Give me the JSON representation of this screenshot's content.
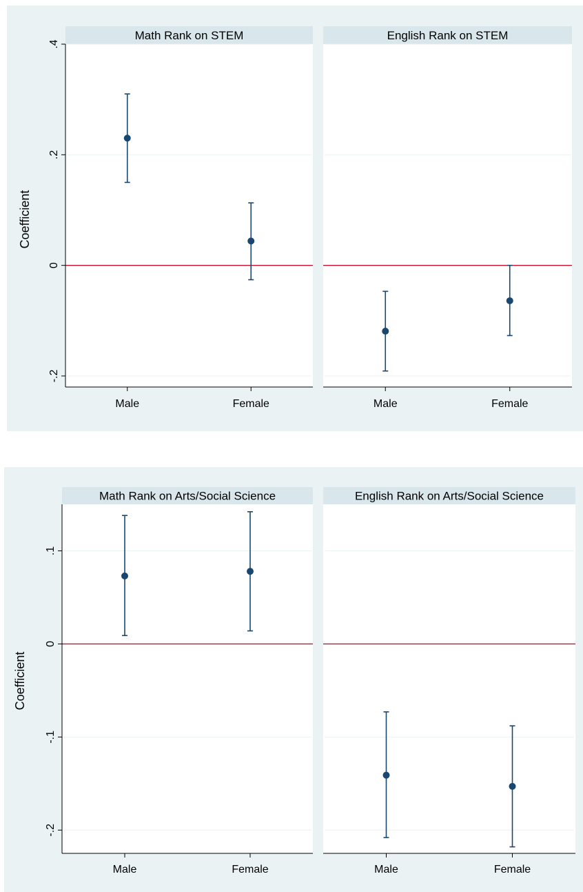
{
  "chart_data": [
    {
      "type": "scatter",
      "subtype": "coefficient-plot-with-confidence-intervals",
      "ylabel": "Coefficient",
      "ylim": [
        -0.22,
        0.4
      ],
      "yticks": [
        -0.2,
        0,
        0.2,
        0.4
      ],
      "ytick_labels": [
        "-.2",
        "0",
        ".2",
        ".4"
      ],
      "reference_line": 0,
      "reference_line_color": "#c8102e",
      "marker_color": "#1a476f",
      "grid": true,
      "categories": [
        "Male",
        "Female"
      ],
      "panels": [
        {
          "title": "Math Rank on STEM",
          "points": [
            {
              "x": "Male",
              "y": 0.23,
              "lo": 0.15,
              "hi": 0.31
            },
            {
              "x": "Female",
              "y": 0.044,
              "lo": -0.026,
              "hi": 0.113
            }
          ]
        },
        {
          "title": "English Rank on STEM",
          "points": [
            {
              "x": "Male",
              "y": -0.119,
              "lo": -0.191,
              "hi": -0.047
            },
            {
              "x": "Female",
              "y": -0.064,
              "lo": -0.127,
              "hi": 0.0
            }
          ]
        }
      ]
    },
    {
      "type": "scatter",
      "subtype": "coefficient-plot-with-confidence-intervals",
      "ylabel": "Coefficient",
      "ylim": [
        -0.225,
        0.15
      ],
      "yticks": [
        -0.2,
        -0.1,
        0,
        0.1
      ],
      "ytick_labels": [
        "-.2",
        "-.1",
        "0",
        ".1"
      ],
      "reference_line": 0,
      "reference_line_color": "#c8102e",
      "marker_color": "#1a476f",
      "grid": true,
      "categories": [
        "Male",
        "Female"
      ],
      "panels": [
        {
          "title": "Math Rank on Arts/Social Science",
          "points": [
            {
              "x": "Male",
              "y": 0.073,
              "lo": 0.009,
              "hi": 0.138
            },
            {
              "x": "Female",
              "y": 0.078,
              "lo": 0.014,
              "hi": 0.142
            }
          ]
        },
        {
          "title": "English Rank on Arts/Social Science",
          "points": [
            {
              "x": "Male",
              "y": -0.141,
              "lo": -0.208,
              "hi": -0.073
            },
            {
              "x": "Female",
              "y": -0.153,
              "lo": -0.218,
              "hi": -0.088
            }
          ]
        }
      ]
    }
  ]
}
